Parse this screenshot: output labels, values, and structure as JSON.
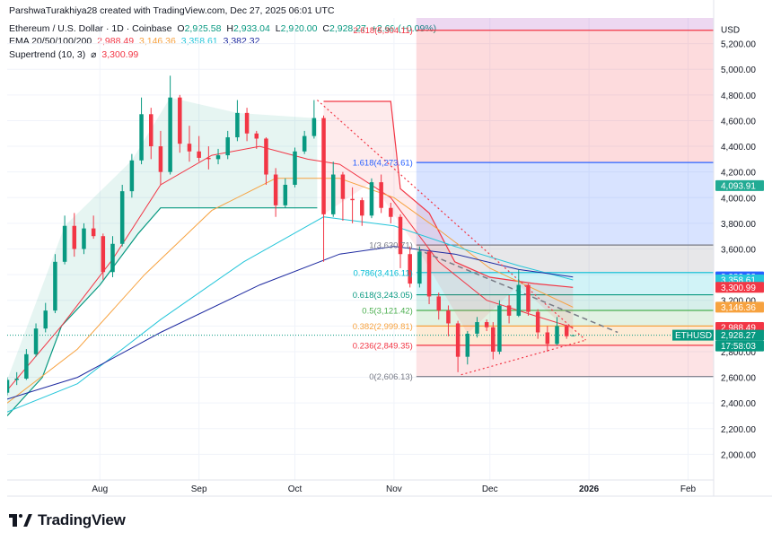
{
  "header": {
    "line1": "ParshwaTurakhiya28 created with TradingView.com, Dec 27, 2025 06:01 UTC",
    "symbol": "Ethereum / U.S. Dollar · 1D · Coinbase",
    "ohlc": {
      "o_label": "O",
      "o": "2,925.58",
      "h_label": "H",
      "h": "2,933.04",
      "l_label": "L",
      "l": "2,920.00",
      "c_label": "C",
      "c": "2,928.27",
      "change": "+2.69 (+0.09%)"
    },
    "ema_label": "EMA 20/50/100/200",
    "ema_values": [
      "2,988.49",
      "3,146.36",
      "3,358.61",
      "3,382.32"
    ],
    "supertrend_label": "Supertrend (10, 3)",
    "supertrend_symbol": "⌀",
    "supertrend_value": "3,300.99"
  },
  "brand": "TradingView",
  "chart_data": {
    "type": "candlestick",
    "currency": "USD",
    "ylim": [
      1800,
      5400
    ],
    "y_ticks": [
      2000,
      2200,
      2400,
      2600,
      2800,
      3000,
      3200,
      3400,
      3600,
      3800,
      4000,
      4200,
      4400,
      4600,
      4800,
      5000,
      5200
    ],
    "y_tick_labels": [
      "2,000.00",
      "2,200.00",
      "2,400.00",
      "2,600.00",
      "2,800.00",
      "3,000.00",
      "3,200.00",
      "3,400.00",
      "3,600.00",
      "3,800.00",
      "4,000.00",
      "4,200.00",
      "4,400.00",
      "4,600.00",
      "4,800.00",
      "5,000.00",
      "5,200.00"
    ],
    "x_tick_labels": [
      {
        "label": "Aug",
        "date": "2025-08-01"
      },
      {
        "label": "Sep",
        "date": "2025-09-01"
      },
      {
        "label": "Oct",
        "date": "2025-10-01"
      },
      {
        "label": "Nov",
        "date": "2025-11-01"
      },
      {
        "label": "Dec",
        "date": "2025-12-01"
      },
      {
        "label": "2026",
        "date": "2026-01-01",
        "bold": true
      },
      {
        "label": "Feb",
        "date": "2026-02-01"
      }
    ],
    "x_range": [
      "2025-07-03",
      "2026-02-09"
    ],
    "candles": [
      {
        "date": "2025-07-03",
        "o": 2480,
        "h": 2600,
        "l": 2460,
        "c": 2580
      },
      {
        "date": "2025-07-06",
        "o": 2580,
        "h": 2640,
        "l": 2540,
        "c": 2590
      },
      {
        "date": "2025-07-09",
        "o": 2590,
        "h": 2820,
        "l": 2580,
        "c": 2780
      },
      {
        "date": "2025-07-12",
        "o": 2780,
        "h": 3020,
        "l": 2760,
        "c": 2980
      },
      {
        "date": "2025-07-15",
        "o": 2980,
        "h": 3180,
        "l": 2950,
        "c": 3120
      },
      {
        "date": "2025-07-18",
        "o": 3120,
        "h": 3560,
        "l": 3100,
        "c": 3500
      },
      {
        "date": "2025-07-21",
        "o": 3500,
        "h": 3860,
        "l": 3480,
        "c": 3780
      },
      {
        "date": "2025-07-24",
        "o": 3780,
        "h": 3880,
        "l": 3540,
        "c": 3600
      },
      {
        "date": "2025-07-27",
        "o": 3600,
        "h": 3800,
        "l": 3560,
        "c": 3760
      },
      {
        "date": "2025-07-30",
        "o": 3760,
        "h": 3860,
        "l": 3680,
        "c": 3700
      },
      {
        "date": "2025-08-02",
        "o": 3700,
        "h": 3720,
        "l": 3360,
        "c": 3420
      },
      {
        "date": "2025-08-05",
        "o": 3420,
        "h": 3700,
        "l": 3380,
        "c": 3640
      },
      {
        "date": "2025-08-08",
        "o": 3640,
        "h": 4100,
        "l": 3620,
        "c": 4050
      },
      {
        "date": "2025-08-11",
        "o": 4050,
        "h": 4340,
        "l": 4000,
        "c": 4290
      },
      {
        "date": "2025-08-14",
        "o": 4290,
        "h": 4780,
        "l": 4260,
        "c": 4650
      },
      {
        "date": "2025-08-17",
        "o": 4650,
        "h": 4700,
        "l": 4300,
        "c": 4400
      },
      {
        "date": "2025-08-20",
        "o": 4400,
        "h": 4520,
        "l": 4100,
        "c": 4200
      },
      {
        "date": "2025-08-23",
        "o": 4200,
        "h": 4950,
        "l": 4180,
        "c": 4780
      },
      {
        "date": "2025-08-26",
        "o": 4780,
        "h": 4800,
        "l": 4350,
        "c": 4420
      },
      {
        "date": "2025-08-29",
        "o": 4420,
        "h": 4560,
        "l": 4280,
        "c": 4360
      },
      {
        "date": "2025-09-01",
        "o": 4360,
        "h": 4480,
        "l": 4280,
        "c": 4310
      },
      {
        "date": "2025-09-04",
        "o": 4310,
        "h": 4400,
        "l": 4220,
        "c": 4300
      },
      {
        "date": "2025-09-07",
        "o": 4300,
        "h": 4380,
        "l": 4260,
        "c": 4330
      },
      {
        "date": "2025-09-10",
        "o": 4330,
        "h": 4520,
        "l": 4300,
        "c": 4470
      },
      {
        "date": "2025-09-13",
        "o": 4470,
        "h": 4760,
        "l": 4440,
        "c": 4660
      },
      {
        "date": "2025-09-16",
        "o": 4660,
        "h": 4700,
        "l": 4440,
        "c": 4500
      },
      {
        "date": "2025-09-19",
        "o": 4500,
        "h": 4520,
        "l": 4380,
        "c": 4460
      },
      {
        "date": "2025-09-22",
        "o": 4460,
        "h": 4470,
        "l": 4100,
        "c": 4180
      },
      {
        "date": "2025-09-25",
        "o": 4180,
        "h": 4230,
        "l": 3850,
        "c": 3940
      },
      {
        "date": "2025-09-28",
        "o": 3940,
        "h": 4150,
        "l": 3920,
        "c": 4100
      },
      {
        "date": "2025-10-01",
        "o": 4100,
        "h": 4390,
        "l": 4080,
        "c": 4360
      },
      {
        "date": "2025-10-04",
        "o": 4360,
        "h": 4520,
        "l": 4340,
        "c": 4480
      },
      {
        "date": "2025-10-07",
        "o": 4480,
        "h": 4760,
        "l": 4460,
        "c": 4620
      },
      {
        "date": "2025-10-10",
        "o": 4620,
        "h": 4640,
        "l": 3500,
        "c": 3870
      },
      {
        "date": "2025-10-13",
        "o": 3870,
        "h": 4280,
        "l": 3850,
        "c": 4180
      },
      {
        "date": "2025-10-16",
        "o": 4180,
        "h": 4200,
        "l": 3820,
        "c": 3990
      },
      {
        "date": "2025-10-19",
        "o": 3990,
        "h": 4080,
        "l": 3800,
        "c": 3980
      },
      {
        "date": "2025-10-22",
        "o": 3980,
        "h": 4000,
        "l": 3780,
        "c": 3860
      },
      {
        "date": "2025-10-25",
        "o": 3860,
        "h": 4150,
        "l": 3840,
        "c": 4120
      },
      {
        "date": "2025-10-28",
        "o": 4120,
        "h": 4180,
        "l": 3880,
        "c": 3920
      },
      {
        "date": "2025-10-31",
        "o": 3920,
        "h": 3960,
        "l": 3800,
        "c": 3850
      },
      {
        "date": "2025-11-03",
        "o": 3850,
        "h": 3870,
        "l": 3450,
        "c": 3560
      },
      {
        "date": "2025-11-06",
        "o": 3560,
        "h": 3620,
        "l": 3300,
        "c": 3330
      },
      {
        "date": "2025-11-09",
        "o": 3330,
        "h": 3620,
        "l": 3300,
        "c": 3580
      },
      {
        "date": "2025-11-12",
        "o": 3580,
        "h": 3600,
        "l": 3170,
        "c": 3230
      },
      {
        "date": "2025-11-15",
        "o": 3230,
        "h": 3260,
        "l": 3050,
        "c": 3120
      },
      {
        "date": "2025-11-18",
        "o": 3120,
        "h": 3160,
        "l": 2920,
        "c": 3020
      },
      {
        "date": "2025-11-21",
        "o": 3020,
        "h": 3040,
        "l": 2640,
        "c": 2760
      },
      {
        "date": "2025-11-24",
        "o": 2760,
        "h": 2960,
        "l": 2700,
        "c": 2940
      },
      {
        "date": "2025-11-27",
        "o": 2940,
        "h": 3070,
        "l": 2910,
        "c": 3030
      },
      {
        "date": "2025-11-30",
        "o": 3030,
        "h": 3050,
        "l": 2960,
        "c": 2990
      },
      {
        "date": "2025-12-02",
        "o": 2990,
        "h": 3030,
        "l": 2740,
        "c": 2800
      },
      {
        "date": "2025-12-04",
        "o": 2800,
        "h": 3200,
        "l": 2780,
        "c": 3160
      },
      {
        "date": "2025-12-07",
        "o": 3160,
        "h": 3240,
        "l": 3020,
        "c": 3080
      },
      {
        "date": "2025-12-10",
        "o": 3080,
        "h": 3440,
        "l": 3070,
        "c": 3320
      },
      {
        "date": "2025-12-13",
        "o": 3320,
        "h": 3330,
        "l": 3080,
        "c": 3110
      },
      {
        "date": "2025-12-16",
        "o": 3110,
        "h": 3130,
        "l": 2900,
        "c": 2950
      },
      {
        "date": "2025-12-19",
        "o": 2950,
        "h": 3000,
        "l": 2800,
        "c": 2860
      },
      {
        "date": "2025-12-22",
        "o": 2860,
        "h": 3070,
        "l": 2850,
        "c": 3000
      },
      {
        "date": "2025-12-25",
        "o": 3000,
        "h": 3010,
        "l": 2900,
        "c": 2920
      },
      {
        "date": "2025-12-27",
        "o": 2925.58,
        "h": 2933.04,
        "l": 2920.0,
        "c": 2928.27
      }
    ],
    "ema": [
      {
        "name": "EMA 20",
        "color": "#f23645",
        "points": [
          [
            "2025-07-03",
            2500
          ],
          [
            "2025-07-20",
            3000
          ],
          [
            "2025-08-05",
            3520
          ],
          [
            "2025-08-20",
            4100
          ],
          [
            "2025-09-05",
            4330
          ],
          [
            "2025-09-20",
            4400
          ],
          [
            "2025-10-05",
            4300
          ],
          [
            "2025-10-15",
            4260
          ],
          [
            "2025-10-31",
            4000
          ],
          [
            "2025-11-15",
            3500
          ],
          [
            "2025-11-30",
            3200
          ],
          [
            "2025-12-15",
            3080
          ],
          [
            "2025-12-27",
            2988
          ]
        ]
      },
      {
        "name": "EMA 50",
        "color": "#f7a23f",
        "points": [
          [
            "2025-07-03",
            2400
          ],
          [
            "2025-07-25",
            2820
          ],
          [
            "2025-08-15",
            3400
          ],
          [
            "2025-09-05",
            3900
          ],
          [
            "2025-09-25",
            4150
          ],
          [
            "2025-10-15",
            4150
          ],
          [
            "2025-11-01",
            4000
          ],
          [
            "2025-11-15",
            3750
          ],
          [
            "2025-12-01",
            3450
          ],
          [
            "2025-12-27",
            3146
          ]
        ]
      },
      {
        "name": "EMA 100",
        "color": "#26c6da",
        "points": [
          [
            "2025-07-03",
            2330
          ],
          [
            "2025-07-25",
            2550
          ],
          [
            "2025-08-20",
            3050
          ],
          [
            "2025-09-15",
            3500
          ],
          [
            "2025-10-10",
            3850
          ],
          [
            "2025-11-01",
            3780
          ],
          [
            "2025-11-20",
            3620
          ],
          [
            "2025-12-10",
            3470
          ],
          [
            "2025-12-27",
            3359
          ]
        ]
      },
      {
        "name": "EMA 200",
        "color": "#1e2aa0",
        "points": [
          [
            "2025-07-03",
            2430
          ],
          [
            "2025-07-25",
            2600
          ],
          [
            "2025-08-20",
            2950
          ],
          [
            "2025-09-20",
            3320
          ],
          [
            "2025-10-15",
            3560
          ],
          [
            "2025-11-01",
            3620
          ],
          [
            "2025-11-20",
            3560
          ],
          [
            "2025-12-10",
            3440
          ],
          [
            "2025-12-27",
            3382
          ]
        ]
      }
    ],
    "supertrend": {
      "up_segments": [
        [
          [
            "2025-07-03",
            2300
          ],
          [
            "2025-07-14",
            2600
          ],
          [
            "2025-07-20",
            3000
          ],
          [
            "2025-08-01",
            3320
          ],
          [
            "2025-08-13",
            3720
          ],
          [
            "2025-08-20",
            3920
          ],
          [
            "2025-09-25",
            3920
          ],
          [
            "2025-10-08",
            3920
          ]
        ]
      ],
      "down_segments": [
        [
          [
            "2025-10-10",
            4750
          ],
          [
            "2025-10-31",
            4750
          ],
          [
            "2025-11-03",
            4070
          ],
          [
            "2025-11-12",
            3880
          ],
          [
            "2025-11-20",
            3500
          ],
          [
            "2025-12-01",
            3380
          ],
          [
            "2025-12-15",
            3330
          ],
          [
            "2025-12-27",
            3301
          ]
        ]
      ]
    },
    "fibonacci": {
      "levels": [
        {
          "ratio": "2.618",
          "value": "5,304.11",
          "price": 5304.11,
          "color": "#f23645"
        },
        {
          "ratio": "1.618",
          "value": "4,273.61",
          "price": 4273.61,
          "color": "#2962ff"
        },
        {
          "ratio": "1",
          "value": "3,630.71",
          "price": 3630.71,
          "color": "#787b86"
        },
        {
          "ratio": "0.786",
          "value": "3,416.11",
          "price": 3416.11,
          "color": "#00bcd4"
        },
        {
          "ratio": "0.618",
          "value": "3,243.05",
          "price": 3243.05,
          "color": "#089981"
        },
        {
          "ratio": "0.5",
          "value": "3,121.42",
          "price": 3121.42,
          "color": "#4caf50"
        },
        {
          "ratio": "0.382",
          "value": "2,999.81",
          "price": 2999.81,
          "color": "#f7a23f"
        },
        {
          "ratio": "0.236",
          "value": "2,849.35",
          "price": 2849.35,
          "color": "#f23645"
        },
        {
          "ratio": "0",
          "value": "2,606.13",
          "price": 2606.13,
          "color": "#787b86"
        }
      ],
      "start_date": "2025-11-08",
      "end_date": "2026-02-09",
      "zones": [
        {
          "from": 4273.61,
          "to": 5304.11,
          "color": "rgba(242,54,69,0.18)"
        },
        {
          "from": 3630.71,
          "to": 4273.61,
          "color": "rgba(41,98,255,0.18)"
        },
        {
          "from": 3416.11,
          "to": 3630.71,
          "color": "rgba(120,123,134,0.18)"
        },
        {
          "from": 3243.05,
          "to": 3416.11,
          "color": "rgba(0,188,212,0.18)"
        },
        {
          "from": 3121.42,
          "to": 3243.05,
          "color": "rgba(8,153,129,0.16)"
        },
        {
          "from": 2999.81,
          "to": 3121.42,
          "color": "rgba(76,175,80,0.16)"
        },
        {
          "from": 2849.35,
          "to": 2999.81,
          "color": "rgba(247,162,63,0.22)"
        },
        {
          "from": 2606.13,
          "to": 2849.35,
          "color": "rgba(242,54,69,0.14)"
        }
      ]
    },
    "trendlines": [
      {
        "style": "dotted",
        "color": "#f23645",
        "from": [
          "2025-10-08",
          4760
        ],
        "to": [
          "2025-12-31",
          2890
        ]
      },
      {
        "style": "dotted",
        "color": "#f23645",
        "from": [
          "2025-11-22",
          2620
        ],
        "to": [
          "2025-12-31",
          2890
        ]
      },
      {
        "style": "dashed",
        "color": "#787b86",
        "from": [
          "2025-11-08",
          3600
        ],
        "to": [
          "2026-01-10",
          2950
        ]
      }
    ],
    "price_labels": [
      {
        "text": "USD",
        "price": 5320,
        "bg": "#ffffff",
        "fg": "#131722"
      },
      {
        "text": "4,093.91",
        "price": 4093.91,
        "bg": "#22ab94",
        "fg": "#ffffff"
      },
      {
        "text": "3,382.32",
        "price": 3382.32,
        "bg": "#2962ff",
        "fg": "#ffffff"
      },
      {
        "text": "3,358.61",
        "price": 3358.61,
        "bg": "#26c6da",
        "fg": "#ffffff"
      },
      {
        "text": "3,300.99",
        "price": 3300.99,
        "bg": "#f23645",
        "fg": "#ffffff"
      },
      {
        "text": "3,146.36",
        "price": 3146.36,
        "bg": "#f7a23f",
        "fg": "#ffffff"
      },
      {
        "text": "2,988.49",
        "price": 2988.49,
        "bg": "#f23645",
        "fg": "#ffffff"
      },
      {
        "text": "2,928.27",
        "price": 2928.27,
        "bg": "#089981",
        "fg": "#ffffff"
      },
      {
        "text": "17:58:03",
        "price": 2928.27,
        "bg": "#089981",
        "fg": "#ffffff",
        "offset": 1
      }
    ],
    "symbol_tag": {
      "text": "ETHUSD",
      "price": 2928.27,
      "bg": "#089981",
      "fg": "#ffffff"
    },
    "colors": {
      "up": "#089981",
      "down": "#f23645",
      "grid": "#f0f3fa"
    }
  }
}
